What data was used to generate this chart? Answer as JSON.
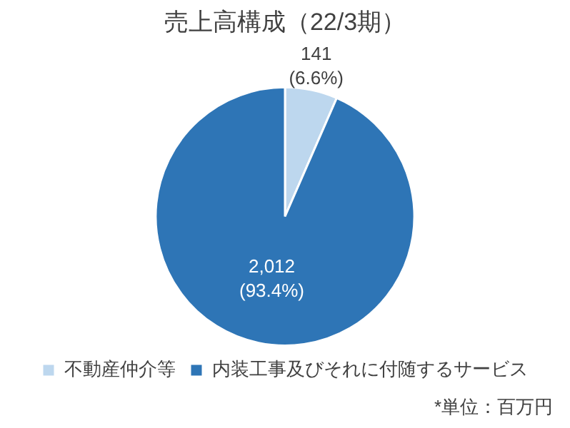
{
  "chart_data": {
    "type": "pie",
    "title": "売上高構成（22/3期）",
    "categories": [
      "不動産仲介等",
      "内装工事及びそれに付随するサービス"
    ],
    "values": [
      141,
      2012
    ],
    "colors": [
      "#bdd7ee",
      "#2e75b6"
    ],
    "value_labels": [
      "141\n(6.6%)",
      "2,012\n(93.4%)"
    ],
    "legend": "bottom",
    "annotations": [
      "*単位：百万円"
    ]
  }
}
